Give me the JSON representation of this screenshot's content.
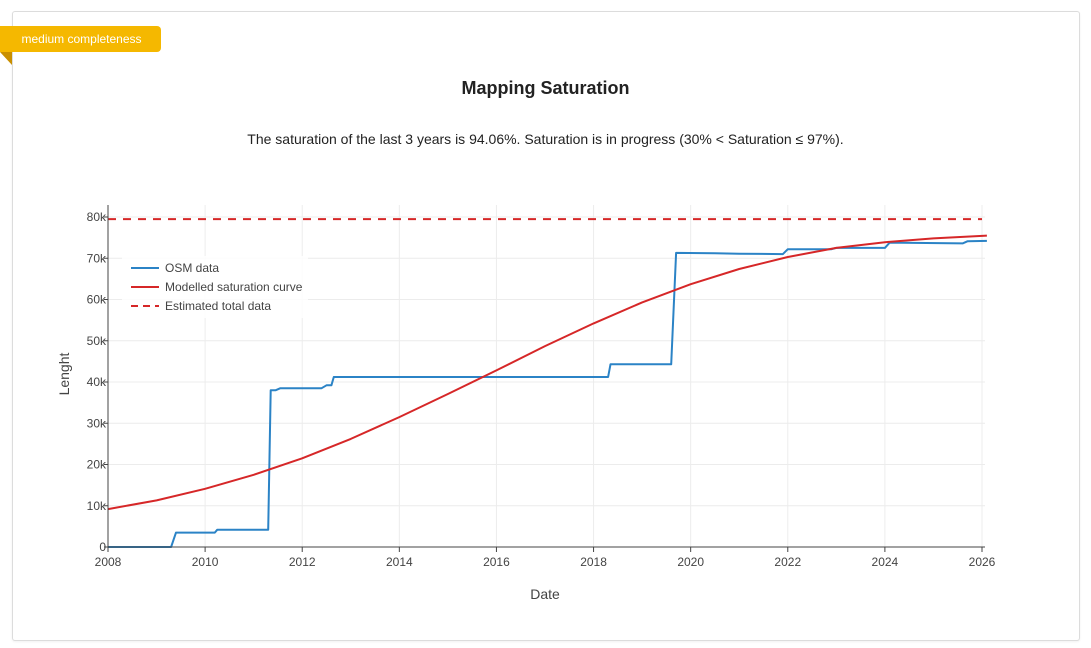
{
  "badge": {
    "label": "medium completeness",
    "color": "#f5b800"
  },
  "header": {
    "title": "Mapping Saturation",
    "description": "The saturation of the last 3 years is 94.06%. Saturation is in progress (30% < Saturation ≤ 97%)."
  },
  "chart_data": {
    "type": "line",
    "title": "",
    "xlabel": "Date",
    "ylabel": "Lenght",
    "xlim": [
      2008,
      2026
    ],
    "ylim": [
      0,
      80000
    ],
    "x_ticks": [
      "2008",
      "2010",
      "2012",
      "2014",
      "2016",
      "2018",
      "2020",
      "2022",
      "2024",
      "2026"
    ],
    "y_ticks": [
      "0",
      "10k",
      "20k",
      "30k",
      "40k",
      "50k",
      "60k",
      "70k",
      "80k"
    ],
    "grid": true,
    "legend_position": "top-left",
    "series": [
      {
        "name": "OSM data",
        "color": "#2b83c6",
        "style": "solid",
        "x": [
          2008.0,
          2009.3,
          2009.4,
          2010.2,
          2010.25,
          2011.3,
          2011.35,
          2011.45,
          2011.55,
          2012.4,
          2012.5,
          2012.6,
          2012.65,
          2013.5,
          2015.0,
          2016.5,
          2017.5,
          2018.3,
          2018.35,
          2019.6,
          2019.7,
          2020.5,
          2021.0,
          2021.9,
          2022.0,
          2022.9,
          2023.0,
          2024.0,
          2024.1,
          2025.6,
          2025.7,
          2026.1
        ],
        "y": [
          0,
          0,
          3500,
          3500,
          4200,
          4200,
          38000,
          38000,
          38500,
          38500,
          39200,
          39200,
          41200,
          41200,
          41200,
          41200,
          41200,
          41200,
          44300,
          44300,
          71300,
          71200,
          71100,
          71000,
          72200,
          72200,
          72500,
          72500,
          73800,
          73600,
          74100,
          74200
        ]
      },
      {
        "name": "Modelled saturation curve",
        "color": "#d62728",
        "style": "solid",
        "x": [
          2008.0,
          2009.0,
          2010.0,
          2011.0,
          2012.0,
          2013.0,
          2014.0,
          2015.0,
          2016.0,
          2017.0,
          2018.0,
          2019.0,
          2020.0,
          2021.0,
          2022.0,
          2023.0,
          2024.0,
          2025.0,
          2026.1
        ],
        "y": [
          9200,
          11300,
          14100,
          17500,
          21500,
          26200,
          31500,
          37100,
          42800,
          48700,
          54200,
          59300,
          63700,
          67400,
          70300,
          72500,
          73900,
          74800,
          75500
        ]
      },
      {
        "name": "Estimated total data",
        "color": "#d62728",
        "style": "dashed",
        "x": [
          2008.0,
          2026.0
        ],
        "y": [
          79500,
          79500
        ]
      }
    ]
  }
}
